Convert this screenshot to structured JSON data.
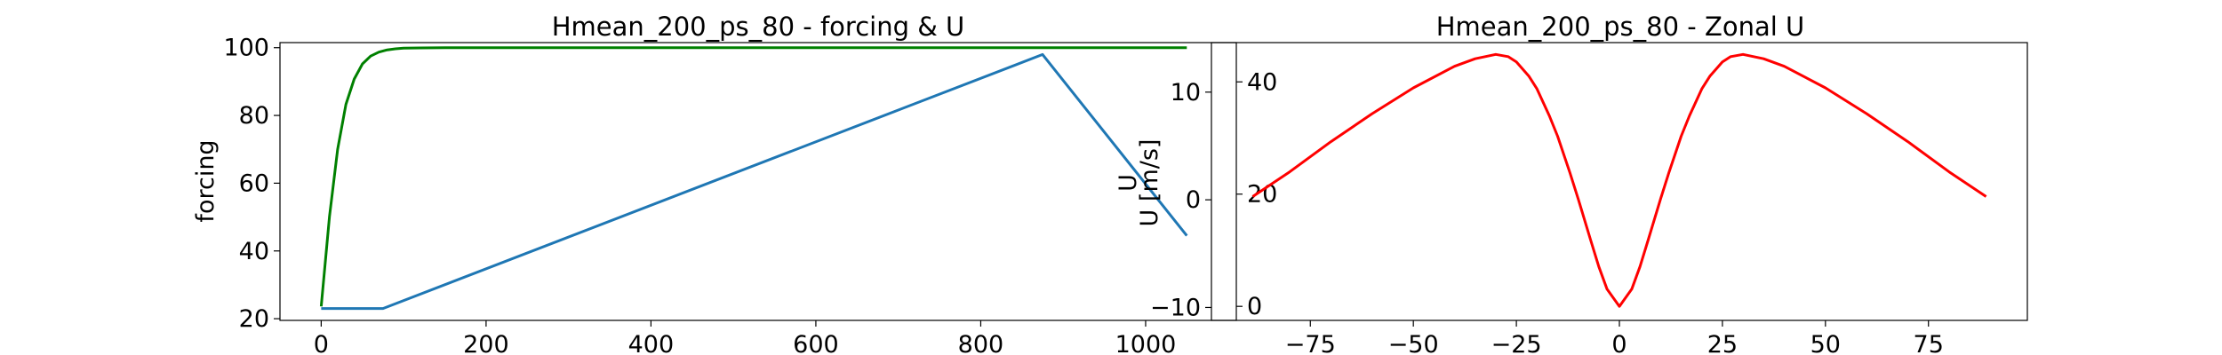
{
  "chart_data": [
    {
      "type": "line",
      "title": "Hmean_200_ps_80 - forcing & U",
      "xlabel": "",
      "ylabel": "forcing",
      "ylabel_right": "U",
      "xlim": [
        -50,
        1110
      ],
      "ylim": [
        19.5,
        101.5
      ],
      "ylim_right": [
        -2.5,
        47
      ],
      "xticks": [
        0,
        200,
        400,
        600,
        800,
        1000
      ],
      "yticks": [
        20,
        40,
        60,
        80,
        100
      ],
      "yticks_right": [
        0,
        20,
        40
      ],
      "grid": false,
      "series": [
        {
          "axis": "left",
          "color": "#1f77b4",
          "x": [
            0,
            75,
            875,
            1050
          ],
          "y": [
            23,
            23,
            98,
            44.5
          ]
        },
        {
          "axis": "right",
          "color": "#008000",
          "x": [
            0,
            10,
            20,
            30,
            40,
            50,
            60,
            70,
            80,
            90,
            100,
            120,
            150,
            200,
            400,
            600,
            800,
            1050
          ],
          "y": [
            0,
            16,
            28,
            36,
            40.5,
            43.2,
            44.6,
            45.3,
            45.7,
            45.9,
            46.0,
            46.05,
            46.1,
            46.1,
            46.1,
            46.1,
            46.1,
            46.1
          ]
        }
      ]
    },
    {
      "type": "line",
      "title": "Hmean_200_ps_80 - Zonal U",
      "xlabel": "",
      "ylabel": "U [m/s]",
      "xlim": [
        -99,
        99
      ],
      "ylim": [
        -11.2,
        14.6
      ],
      "xticks": [
        -75,
        -50,
        -25,
        0,
        25,
        50,
        75
      ],
      "xtick_labels": [
        "−75",
        "−50",
        "−25",
        "0",
        "25",
        "50",
        "75"
      ],
      "yticks": [
        -10,
        0,
        10
      ],
      "ytick_labels": [
        "−10",
        "0",
        "10"
      ],
      "grid": false,
      "series": [
        {
          "color": "#ff0000",
          "x": [
            -89,
            -80,
            -70,
            -60,
            -50,
            -40,
            -35,
            -30,
            -27,
            -25,
            -22,
            -20,
            -17,
            -15,
            -12,
            -10,
            -7,
            -5,
            -3,
            0,
            3,
            5,
            7,
            10,
            12,
            15,
            17,
            20,
            22,
            25,
            27,
            30,
            35,
            40,
            50,
            60,
            70,
            80,
            89
          ],
          "y": [
            0.3,
            2.6,
            5.4,
            8.0,
            10.4,
            12.4,
            13.1,
            13.5,
            13.3,
            12.8,
            11.5,
            10.3,
            7.8,
            5.9,
            2.5,
            0.1,
            -3.7,
            -6.2,
            -8.3,
            -9.9,
            -8.3,
            -6.2,
            -3.7,
            0.1,
            2.5,
            5.9,
            7.8,
            10.3,
            11.5,
            12.8,
            13.3,
            13.5,
            13.1,
            12.4,
            10.4,
            8.0,
            5.4,
            2.6,
            0.3
          ]
        }
      ]
    }
  ]
}
